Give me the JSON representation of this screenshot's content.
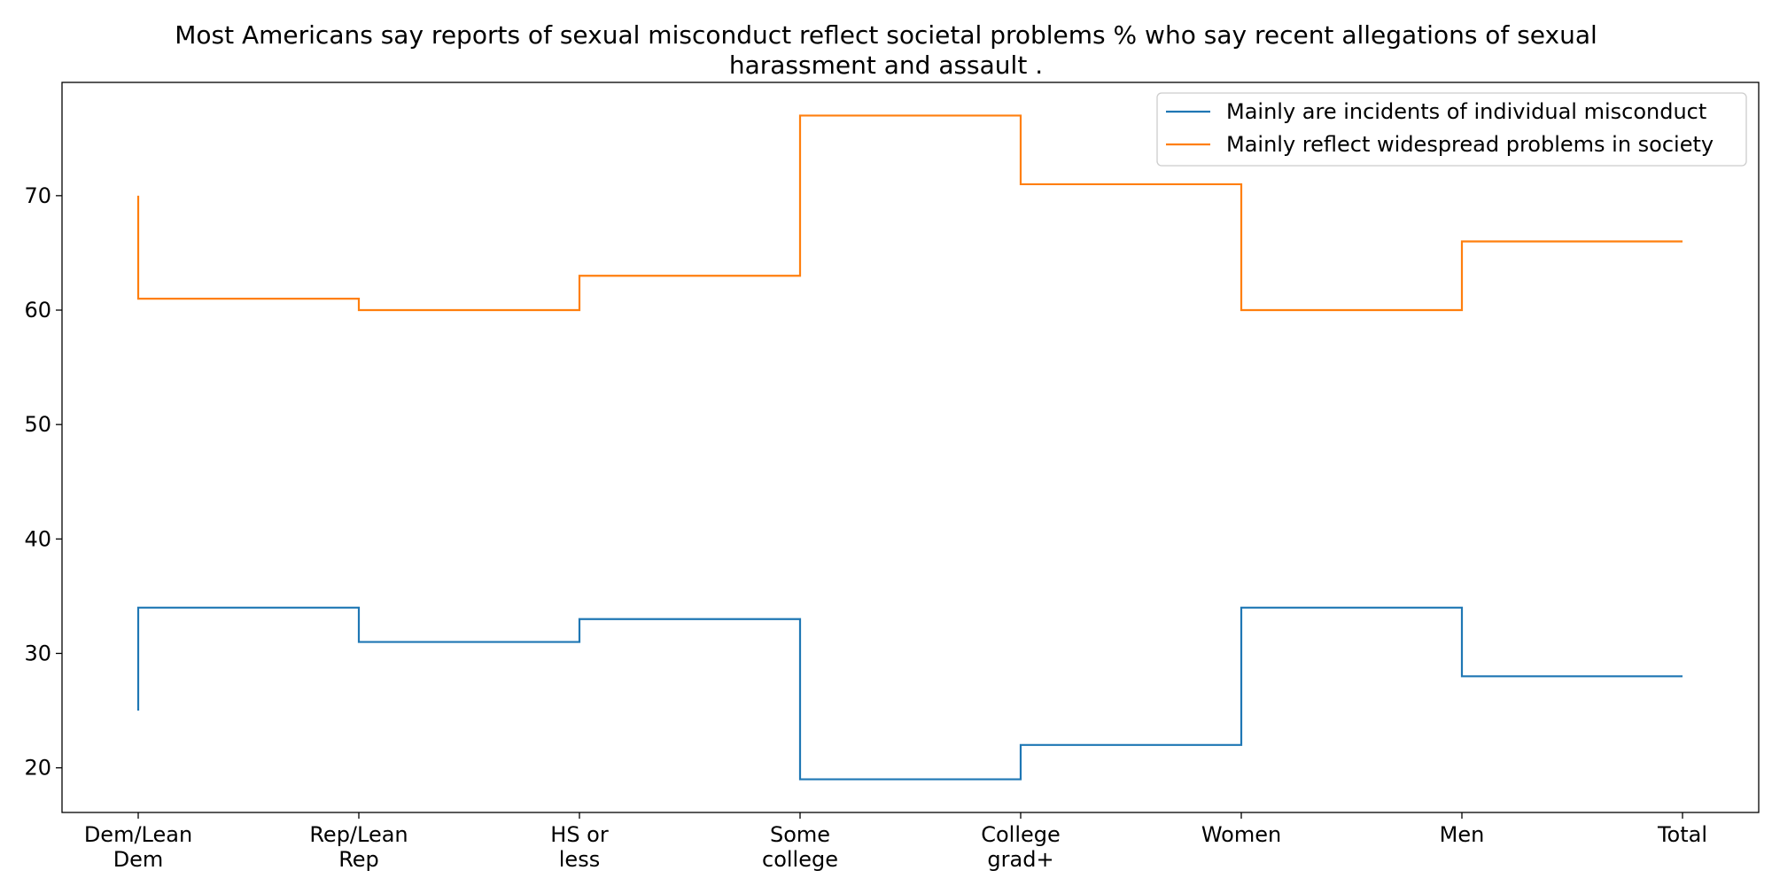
{
  "chart_data": {
    "type": "line",
    "step": "post",
    "title": "Most Americans say reports of sexual misconduct reflect societal problems % who say recent allegations of sexual harassment and assault .",
    "title_lines": [
      "Most Americans say reports of sexual misconduct reflect societal problems % who say recent allegations of sexual",
      "harassment and assault ."
    ],
    "categories": [
      "Dem/Lean Dem",
      "Rep/Lean Rep",
      "HS or less",
      "Some college",
      "College grad+",
      "Women",
      "Men",
      "Total"
    ],
    "category_tick_lines": [
      [
        "Dem/Lean",
        "Dem"
      ],
      [
        "Rep/Lean",
        "Rep"
      ],
      [
        "HS or",
        "less"
      ],
      [
        "Some",
        "college"
      ],
      [
        "College",
        "grad+"
      ],
      [
        "Women"
      ],
      [
        "Men"
      ],
      [
        "Total"
      ]
    ],
    "series": [
      {
        "name": "Mainly are incidents of individual misconduct",
        "color": "#1f77b4",
        "values": [
          25,
          34,
          31,
          33,
          19,
          22,
          34,
          28
        ]
      },
      {
        "name": "Mainly reflect widespread problems in society",
        "color": "#ff7f0e",
        "values": [
          70,
          61,
          60,
          63,
          77,
          71,
          60,
          66
        ]
      }
    ],
    "yticks": [
      20,
      30,
      40,
      50,
      60,
      70
    ],
    "ylim": [
      16.1,
      79.9
    ],
    "xlabel": "",
    "ylabel": "",
    "grid": false,
    "legend_position": "top-right"
  }
}
